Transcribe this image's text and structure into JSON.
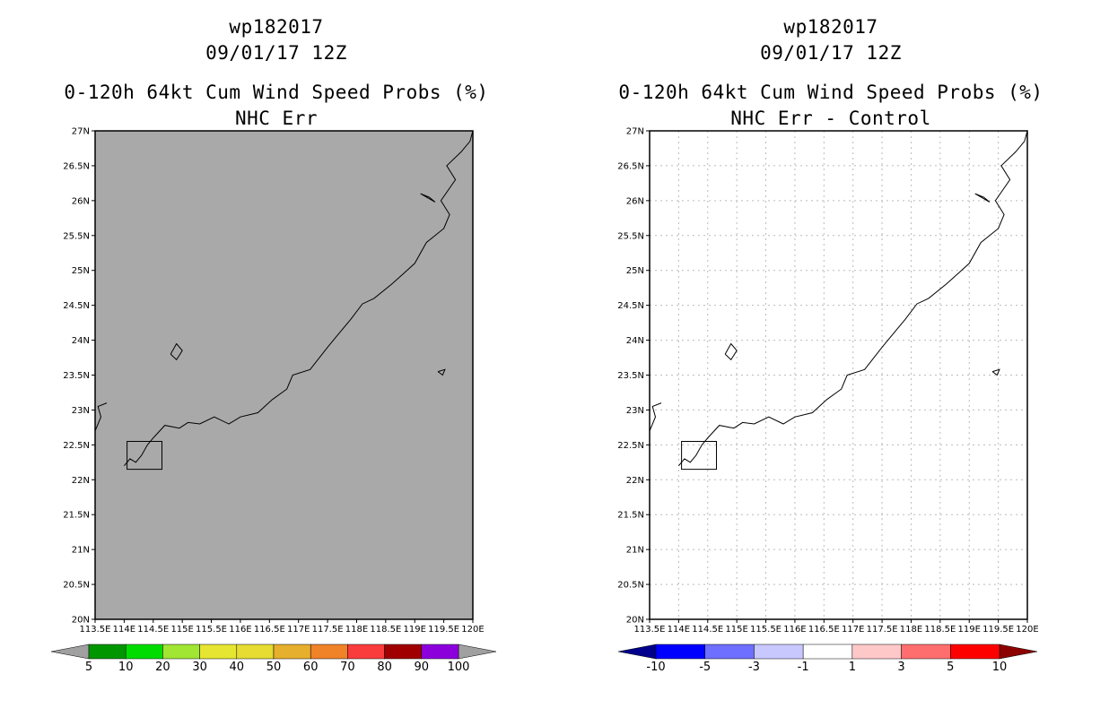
{
  "panels": [
    {
      "storm_id": "wp182017",
      "datetime": "09/01/17 12Z",
      "product": "0-120h 64kt Cum Wind Speed Probs (%)",
      "subtitle": "NHC Err",
      "background": "#a9a9a9",
      "colorbar": {
        "colors": [
          "#009600",
          "#00dc00",
          "#a0e632",
          "#e6e632",
          "#e6dc32",
          "#e6af2d",
          "#f08228",
          "#fa3c3c",
          "#a00000",
          "#8c00dc"
        ],
        "labels": [
          "5",
          "10",
          "20",
          "30",
          "40",
          "50",
          "60",
          "70",
          "80",
          "90",
          "100"
        ]
      }
    },
    {
      "storm_id": "wp182017",
      "datetime": "09/01/17 12Z",
      "product": "0-120h 64kt Cum Wind Speed Probs (%)",
      "subtitle": "NHC Err - Control",
      "background": "#ffffff",
      "colorbar": {
        "colors": [
          "#0000ff",
          "#6e6eff",
          "#c8c8ff",
          "#ffffff",
          "#ffc8c8",
          "#ff6e6e",
          "#ff0000"
        ],
        "labels": [
          "-10",
          "-5",
          "-3",
          "-1",
          "1",
          "3",
          "5",
          "10"
        ]
      }
    }
  ],
  "axes": {
    "lon_labels": [
      "113.5E",
      "114E",
      "114.5E",
      "115E",
      "115.5E",
      "116E",
      "116.5E",
      "117E",
      "117.5E",
      "118E",
      "118.5E",
      "119E",
      "119.5E",
      "120E"
    ],
    "lat_labels": [
      "20N",
      "20.5N",
      "21N",
      "21.5N",
      "22N",
      "22.5N",
      "23N",
      "23.5N",
      "24N",
      "24.5N",
      "25N",
      "25.5N",
      "26N",
      "26.5N",
      "27N"
    ],
    "lon_range": [
      113.5,
      120.0
    ],
    "lat_range": [
      20.0,
      27.0
    ]
  },
  "colors": {
    "coastline": "#000000",
    "grid": "#bbbbbb",
    "left_under": "#a0a0a0",
    "right_under": "#00008c",
    "right_over": "#8c0000"
  },
  "coastline": [
    [
      114.0,
      22.2
    ],
    [
      114.1,
      22.3
    ],
    [
      114.2,
      22.25
    ],
    [
      114.3,
      22.35
    ],
    [
      114.4,
      22.5
    ],
    [
      114.5,
      22.6
    ],
    [
      114.7,
      22.78
    ],
    [
      114.95,
      22.74
    ],
    [
      115.1,
      22.82
    ],
    [
      115.3,
      22.8
    ],
    [
      115.55,
      22.9
    ],
    [
      115.8,
      22.8
    ],
    [
      116.0,
      22.9
    ],
    [
      116.3,
      22.96
    ],
    [
      116.55,
      23.15
    ],
    [
      116.8,
      23.3
    ],
    [
      116.9,
      23.5
    ],
    [
      117.2,
      23.58
    ],
    [
      117.5,
      23.9
    ],
    [
      117.7,
      24.1
    ],
    [
      117.9,
      24.3
    ],
    [
      118.1,
      24.52
    ],
    [
      118.3,
      24.6
    ],
    [
      118.6,
      24.8
    ],
    [
      118.8,
      24.95
    ],
    [
      119.0,
      25.1
    ],
    [
      119.2,
      25.4
    ],
    [
      119.5,
      25.6
    ],
    [
      119.6,
      25.8
    ],
    [
      119.45,
      26.0
    ],
    [
      119.7,
      26.3
    ],
    [
      119.55,
      26.5
    ],
    [
      119.8,
      26.7
    ],
    [
      119.95,
      26.85
    ],
    [
      120.0,
      27.0
    ]
  ],
  "coastline_west": [
    [
      113.5,
      22.7
    ],
    [
      113.6,
      22.9
    ],
    [
      113.55,
      23.05
    ],
    [
      113.7,
      23.1
    ]
  ],
  "hk_box": [
    [
      114.05,
      22.15
    ],
    [
      114.65,
      22.15
    ],
    [
      114.65,
      22.55
    ],
    [
      114.05,
      22.55
    ]
  ],
  "islands": [
    [
      [
        114.8,
        23.8
      ],
      [
        114.9,
        23.95
      ],
      [
        115.0,
        23.85
      ],
      [
        114.9,
        23.72
      ],
      [
        114.8,
        23.8
      ]
    ],
    [
      [
        119.4,
        23.55
      ],
      [
        119.52,
        23.58
      ],
      [
        119.48,
        23.5
      ],
      [
        119.4,
        23.55
      ]
    ],
    [
      [
        119.1,
        26.1
      ],
      [
        119.35,
        25.98
      ],
      [
        119.25,
        26.05
      ],
      [
        119.1,
        26.1
      ]
    ]
  ]
}
